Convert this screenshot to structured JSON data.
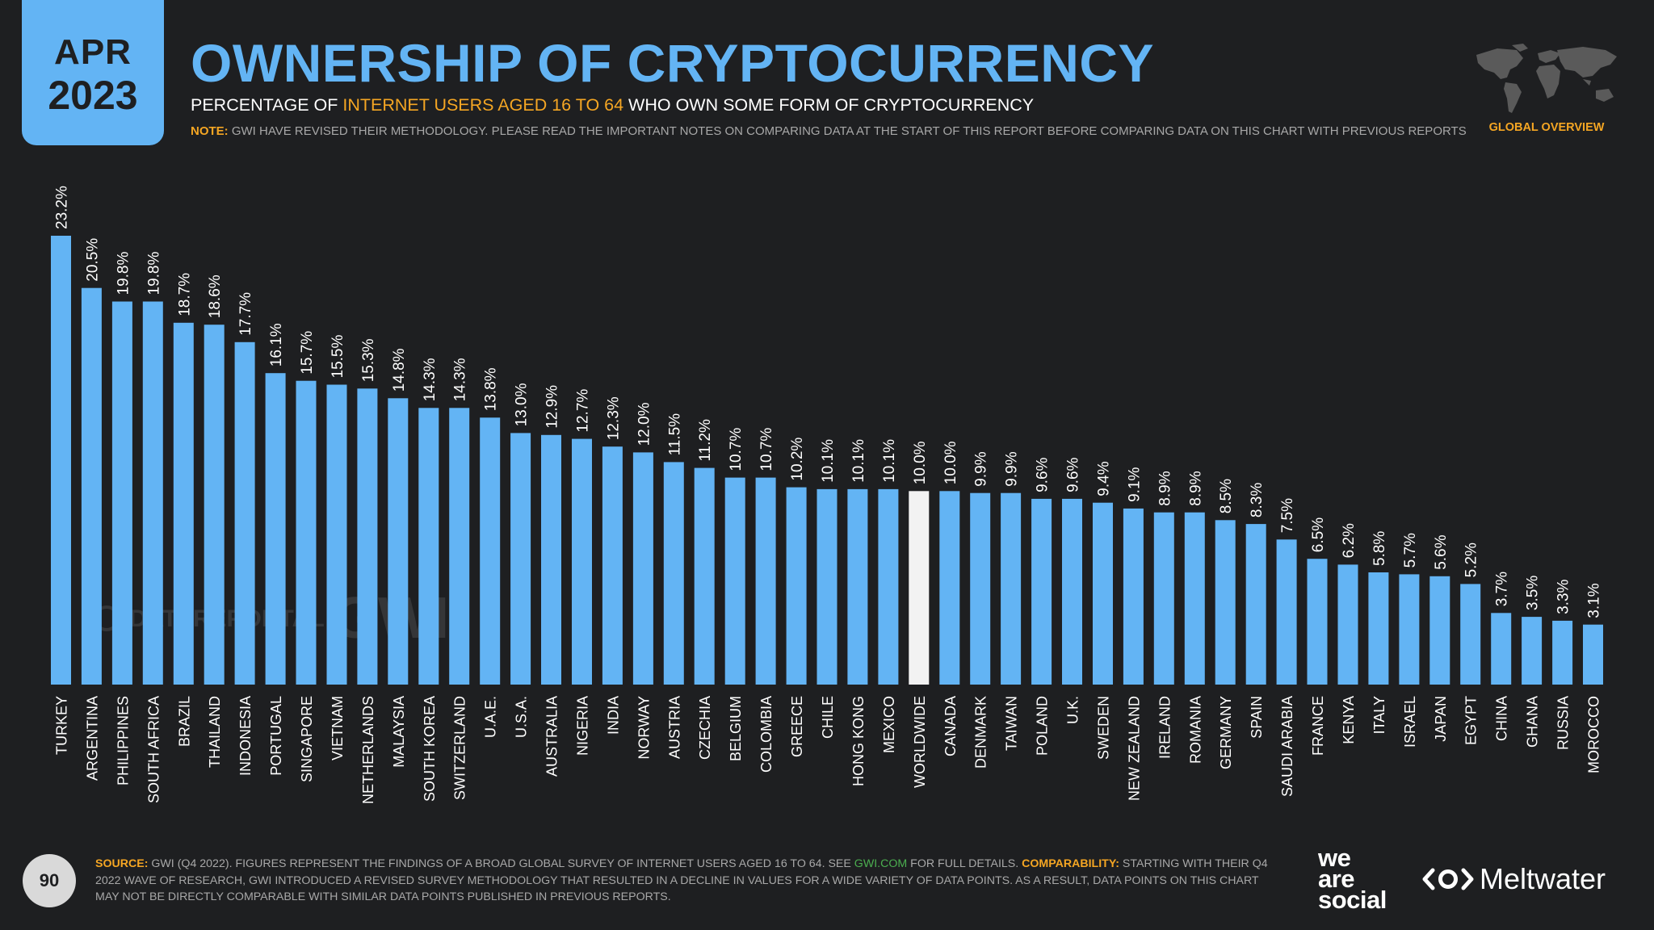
{
  "header": {
    "date_month": "APR",
    "date_year": "2023",
    "title": "OWNERSHIP OF CRYPTOCURRENCY",
    "subtitle_pre": "PERCENTAGE OF ",
    "subtitle_highlight": "INTERNET USERS AGED 16 TO 64",
    "subtitle_post": " WHO OWN SOME FORM OF CRYPTOCURRENCY",
    "note_label": "NOTE:",
    "note_text": " GWI HAVE REVISED THEIR METHODOLOGY. PLEASE READ THE IMPORTANT NOTES ON COMPARING DATA AT THE START OF THIS REPORT BEFORE COMPARING DATA ON THIS CHART WITH PREVIOUS REPORTS",
    "section_label": "GLOBAL OVERVIEW",
    "map_icon": "world-map-icon"
  },
  "colors": {
    "background": "#1e1f21",
    "bar": "#63b4f4",
    "highlight_bar": "#f2f2f2",
    "accent": "#f5a623",
    "text_muted": "#a8a8a8"
  },
  "watermarks": {
    "datareportal": "DATAREPORTAL",
    "gwi": "GWI."
  },
  "chart_data": {
    "type": "bar",
    "value_suffix": "%",
    "highlight": "WORLDWIDE",
    "categories": [
      "TURKEY",
      "ARGENTINA",
      "PHILIPPINES",
      "SOUTH AFRICA",
      "BRAZIL",
      "THAILAND",
      "INDONESIA",
      "PORTUGAL",
      "SINGAPORE",
      "VIETNAM",
      "NETHERLANDS",
      "MALAYSIA",
      "SOUTH KOREA",
      "SWITZERLAND",
      "U.A.E.",
      "U.S.A.",
      "AUSTRALIA",
      "NIGERIA",
      "INDIA",
      "NORWAY",
      "AUSTRIA",
      "CZECHIA",
      "BELGIUM",
      "COLOMBIA",
      "GREECE",
      "CHILE",
      "HONG KONG",
      "MEXICO",
      "WORLDWIDE",
      "CANADA",
      "DENMARK",
      "TAIWAN",
      "POLAND",
      "U.K.",
      "SWEDEN",
      "NEW ZEALAND",
      "IRELAND",
      "ROMANIA",
      "GERMANY",
      "SPAIN",
      "SAUDI ARABIA",
      "FRANCE",
      "KENYA",
      "ITALY",
      "ISRAEL",
      "JAPAN",
      "EGYPT",
      "CHINA",
      "GHANA",
      "RUSSIA",
      "MOROCCO"
    ],
    "values": [
      23.2,
      20.5,
      19.8,
      19.8,
      18.7,
      18.6,
      17.7,
      16.1,
      15.7,
      15.5,
      15.3,
      14.8,
      14.3,
      14.3,
      13.8,
      13.0,
      12.9,
      12.7,
      12.3,
      12.0,
      11.5,
      11.2,
      10.7,
      10.7,
      10.2,
      10.1,
      10.1,
      10.1,
      10.0,
      10.0,
      9.9,
      9.9,
      9.6,
      9.6,
      9.4,
      9.1,
      8.9,
      8.9,
      8.5,
      8.3,
      7.5,
      6.5,
      6.2,
      5.8,
      5.7,
      5.6,
      5.2,
      3.7,
      3.5,
      3.3,
      3.1
    ],
    "ylim": [
      0,
      23.2
    ]
  },
  "footer": {
    "page_number": "90",
    "source_label": "SOURCE:",
    "source_text_1": " GWI (Q4 2022). FIGURES REPRESENT THE FINDINGS OF A BROAD GLOBAL SURVEY OF INTERNET USERS AGED 16 TO 64. SEE ",
    "source_link": "GWI.COM",
    "source_text_2": " FOR FULL DETAILS. ",
    "comparability_label": "COMPARABILITY:",
    "comparability_text": " STARTING WITH THEIR Q4 2022 WAVE OF RESEARCH, GWI INTRODUCED A REVISED SURVEY METHODOLOGY THAT RESULTED IN A DECLINE IN VALUES FOR A WIDE VARIETY OF DATA POINTS. AS A RESULT, DATA POINTS ON THIS CHART MAY NOT BE DIRECTLY COMPARABLE WITH SIMILAR DATA POINTS PUBLISHED IN PREVIOUS REPORTS.",
    "brand_was_1": "we",
    "brand_was_2": "are",
    "brand_was_3": "social",
    "brand_meltwater": "Meltwater"
  }
}
